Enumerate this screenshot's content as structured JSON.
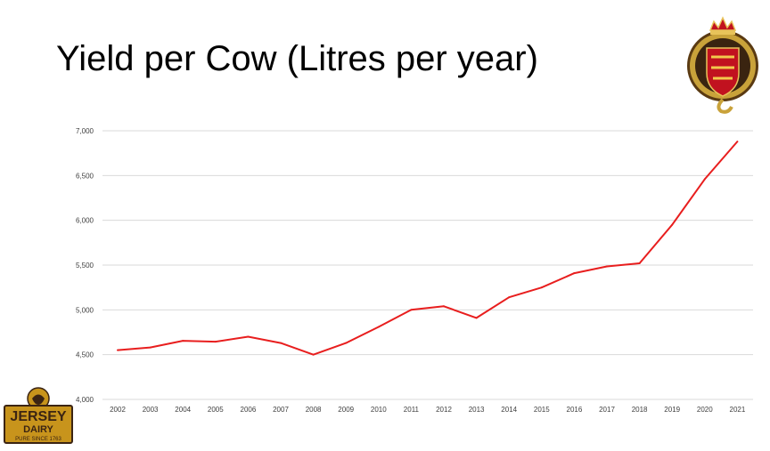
{
  "slide": {
    "title": "Yield per Cow (Litres per year)"
  },
  "logos": {
    "crest_name": "states-of-jersey-crest",
    "dairy_brand": "JERSEY",
    "dairy_word": "DAIRY",
    "dairy_tagline": "PURE SINCE 1763"
  },
  "colors": {
    "line": "#e81e1e",
    "gridline": "#d9d9d9",
    "dairy_gold": "#c8941c",
    "dairy_brown": "#3b2413"
  },
  "chart_data": {
    "type": "line",
    "title": "",
    "xlabel": "",
    "ylabel": "",
    "x": [
      "2002",
      "2003",
      "2004",
      "2005",
      "2006",
      "2007",
      "2008",
      "2009",
      "2010",
      "2011",
      "2012",
      "2013",
      "2014",
      "2015",
      "2016",
      "2017",
      "2018",
      "2019",
      "2020",
      "2021"
    ],
    "series": [
      {
        "values": [
          4550,
          4580,
          4655,
          4645,
          4700,
          4630,
          4500,
          4630,
          4810,
          5000,
          5040,
          4910,
          5140,
          5250,
          5410,
          5485,
          5520,
          5950,
          6460,
          6880
        ]
      }
    ],
    "ylim": [
      4000,
      7000
    ],
    "yticks": [
      "4,000",
      "4,500",
      "5,000",
      "5,500",
      "6,000",
      "6,500",
      "7,000"
    ],
    "grid": true,
    "legend": "none"
  }
}
